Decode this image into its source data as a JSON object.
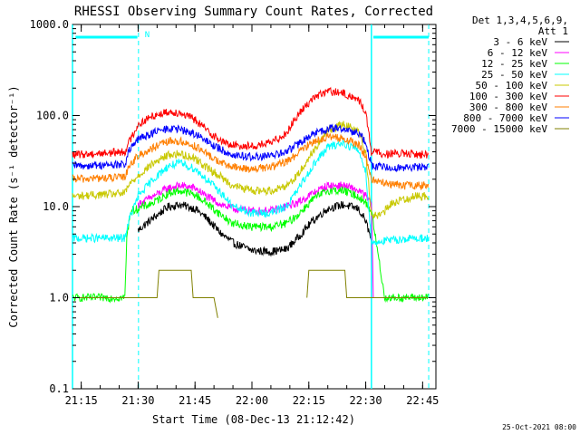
{
  "chart_data": {
    "type": "line",
    "title": "RHESSI Observing Summary Count Rates, Corrected",
    "xlabel": "Start Time (08-Dec-13 21:12:42)",
    "ylabel": "Corrected Count Rate (s⁻¹ detector⁻¹)",
    "y_scale": "log",
    "ylim": [
      0.1,
      1000.0
    ],
    "y_ticks": [
      "0.1",
      "1.0",
      "10.0",
      "100.0",
      "1000.0"
    ],
    "x_ticks": [
      "21:15",
      "21:30",
      "21:45",
      "22:00",
      "22:15",
      "22:30",
      "22:45"
    ],
    "x_tick_minutes": [
      15,
      30,
      45,
      60,
      75,
      90,
      105
    ],
    "xlim_minutes": [
      12.7,
      108.5
    ],
    "grid": false,
    "legend_header": [
      "Det 1,3,4,5,6,9,",
      "Att 1"
    ],
    "legend_position": "right, outside plot",
    "series": [
      {
        "name": "3 - 6 keV",
        "color": "#000000",
        "x": [
          12.7,
          23,
          27.5,
          30,
          34,
          38,
          41,
          45,
          48,
          52,
          55,
          60,
          65,
          69,
          72,
          76,
          80,
          84,
          88,
          90,
          91.5,
          95,
          100,
          106.5
        ],
        "y": [
          null,
          null,
          null,
          5.5,
          7.5,
          10,
          10.5,
          9.5,
          7.5,
          5,
          4,
          3.3,
          3.2,
          3.4,
          4.5,
          7,
          9.5,
          10.5,
          9.5,
          7,
          4.2,
          null,
          null,
          null
        ]
      },
      {
        "name": "6 - 12 keV",
        "color": "#ff00ff",
        "x": [
          12.7,
          27.5,
          30,
          34,
          38,
          41,
          45,
          48,
          52,
          55,
          60,
          65,
          69,
          72,
          76,
          80,
          84,
          88,
          90,
          91.5,
          92
        ],
        "y": [
          null,
          null,
          10.5,
          13,
          16,
          17,
          16,
          13,
          10.5,
          9.5,
          9,
          9,
          10,
          11,
          14,
          17,
          17,
          15,
          13,
          11,
          1.0
        ]
      },
      {
        "name": "12 - 25 keV",
        "color": "#00ff00",
        "x": [
          12.7,
          26.5,
          27,
          28,
          30,
          34,
          38,
          41,
          45,
          48,
          52,
          55,
          60,
          65,
          69,
          72,
          76,
          80,
          84,
          88,
          90,
          91.5,
          95,
          100,
          104,
          106.5
        ],
        "y": [
          1.0,
          1.0,
          4.5,
          9,
          9.5,
          11,
          14,
          15,
          13.5,
          11,
          8,
          6.5,
          6,
          6,
          6.5,
          8,
          12,
          15,
          15,
          13,
          11,
          9,
          1.0,
          1.0,
          1.0,
          1.0
        ]
      },
      {
        "name": "25 - 50 keV",
        "color": "#00ffff",
        "x": [
          12.7,
          26.5,
          27.5,
          30,
          34,
          38,
          41,
          45,
          48,
          52,
          55,
          60,
          65,
          69,
          72,
          76,
          80,
          84,
          88,
          90,
          91.5,
          95,
          100,
          103,
          106.5
        ],
        "y": [
          4.5,
          4.5,
          7,
          13,
          20,
          28,
          30,
          26,
          20,
          14,
          10,
          8.5,
          8.5,
          10,
          15,
          28,
          45,
          50,
          42,
          25,
          4.0,
          4.2,
          4.4,
          4.5,
          4.5
        ]
      },
      {
        "name": "50 - 100 keV",
        "color": "#c8c800",
        "x": [
          12.7,
          26.5,
          27.5,
          30,
          34,
          38,
          41,
          45,
          48,
          52,
          55,
          60,
          65,
          69,
          72,
          76,
          80,
          84,
          88,
          90,
          91.5,
          94,
          97,
          100,
          103,
          106.5
        ],
        "y": [
          13,
          14,
          17,
          22,
          30,
          37,
          38,
          34,
          27,
          21,
          17,
          15,
          15,
          17,
          22,
          40,
          68,
          80,
          70,
          40,
          8,
          8,
          11,
          12,
          13,
          13
        ]
      },
      {
        "name": "100 - 300 keV",
        "color": "#ff0000",
        "x": [
          12.7,
          26.5,
          27.5,
          30,
          34,
          38,
          41,
          45,
          48,
          52,
          55,
          60,
          65,
          69,
          72,
          76,
          80,
          84,
          88,
          90,
          91.5,
          95,
          100,
          106.5
        ],
        "y": [
          37,
          40,
          50,
          80,
          100,
          110,
          108,
          90,
          70,
          52,
          47,
          46,
          50,
          64,
          100,
          155,
          185,
          175,
          150,
          110,
          40,
          38,
          38,
          37
        ]
      },
      {
        "name": "300 - 800 keV",
        "color": "#ff7f00",
        "x": [
          12.7,
          26.5,
          27.5,
          30,
          34,
          38,
          41,
          45,
          48,
          52,
          55,
          60,
          65,
          69,
          72,
          76,
          80,
          84,
          88,
          90,
          91.5,
          95,
          100,
          106.5
        ],
        "y": [
          20,
          21,
          28,
          36,
          44,
          52,
          52,
          46,
          38,
          30,
          27,
          26,
          27,
          31,
          38,
          52,
          58,
          56,
          48,
          36,
          20,
          18,
          17,
          17
        ]
      },
      {
        "name": "800 - 7000 keV",
        "color": "#0000ff",
        "x": [
          12.7,
          26.5,
          27.5,
          30,
          34,
          38,
          41,
          45,
          48,
          52,
          55,
          60,
          65,
          69,
          72,
          76,
          80,
          84,
          88,
          90,
          91.5,
          95,
          100,
          106.5
        ],
        "y": [
          28,
          29,
          40,
          55,
          65,
          72,
          70,
          63,
          52,
          42,
          37,
          35,
          36,
          40,
          48,
          62,
          72,
          72,
          64,
          52,
          28,
          27,
          27,
          27
        ]
      },
      {
        "name": "7000 - 15000 keV",
        "color": "#808000",
        "x": [
          12.7,
          26.5,
          35,
          35.5,
          44,
          44.5,
          50,
          51,
          62,
          63,
          74.5,
          75,
          84.5,
          85,
          91.5,
          95,
          106.5
        ],
        "y": [
          1.0,
          1.0,
          1.0,
          2.0,
          2.0,
          1.0,
          1.0,
          0.6,
          null,
          null,
          1.0,
          2.0,
          2.0,
          1.0,
          1.0,
          1.0,
          1.0
        ]
      }
    ],
    "annotations": [
      {
        "text": "N",
        "x_minute": 30.8,
        "color": "#00ffff"
      }
    ]
  },
  "footer": {
    "timestamp": "25-Oct-2021 08:00"
  }
}
